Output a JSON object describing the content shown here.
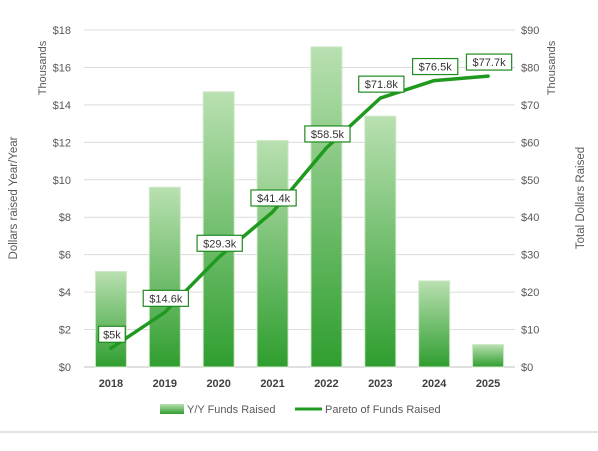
{
  "colors": {
    "bar_top": "#b9e0b1",
    "bar_bottom": "#2f9e2f",
    "bar_edge": "#cfe8c9",
    "line": "#1f9a1f",
    "label_border": "#1f8a1f",
    "grid": "#dcdcdc",
    "baseline": "#bfbfbf"
  },
  "chart_data": {
    "type": "bar",
    "categories": [
      "2018",
      "2019",
      "2020",
      "2021",
      "2022",
      "2023",
      "2024",
      "2025"
    ],
    "series": [
      {
        "name": "Y/Y Funds Raised",
        "type": "bar",
        "axis": "left",
        "values": [
          5.1,
          9.6,
          14.7,
          12.1,
          17.1,
          13.4,
          4.6,
          1.2
        ]
      },
      {
        "name": "Pareto of Funds Raised",
        "type": "line",
        "axis": "right",
        "values": [
          5,
          14.6,
          29.3,
          41.4,
          58.5,
          71.8,
          76.5,
          77.7
        ],
        "data_labels": [
          "$5k",
          "$14.6k",
          "$29.3k",
          "$41.4k",
          "$58.5k",
          "$71.8k",
          "$76.5k",
          "$77.7k"
        ]
      }
    ],
    "y_left": {
      "label": "Dollars raised Year/Year",
      "units": "Thousands",
      "range": [
        0,
        18
      ],
      "ticks": [
        "$0",
        "$2",
        "$4",
        "$6",
        "$8",
        "$10",
        "$12",
        "$14",
        "$16",
        "$18"
      ]
    },
    "y_right": {
      "label": "Total Dollars Raised",
      "units": "Thousands",
      "range": [
        0,
        90
      ],
      "ticks": [
        "$0",
        "$10",
        "$20",
        "$30",
        "$40",
        "$50",
        "$60",
        "$70",
        "$80",
        "$90"
      ]
    },
    "grid": true,
    "legend_position": "bottom",
    "legend": [
      "Y/Y Funds Raised",
      "Pareto of Funds Raised"
    ]
  }
}
